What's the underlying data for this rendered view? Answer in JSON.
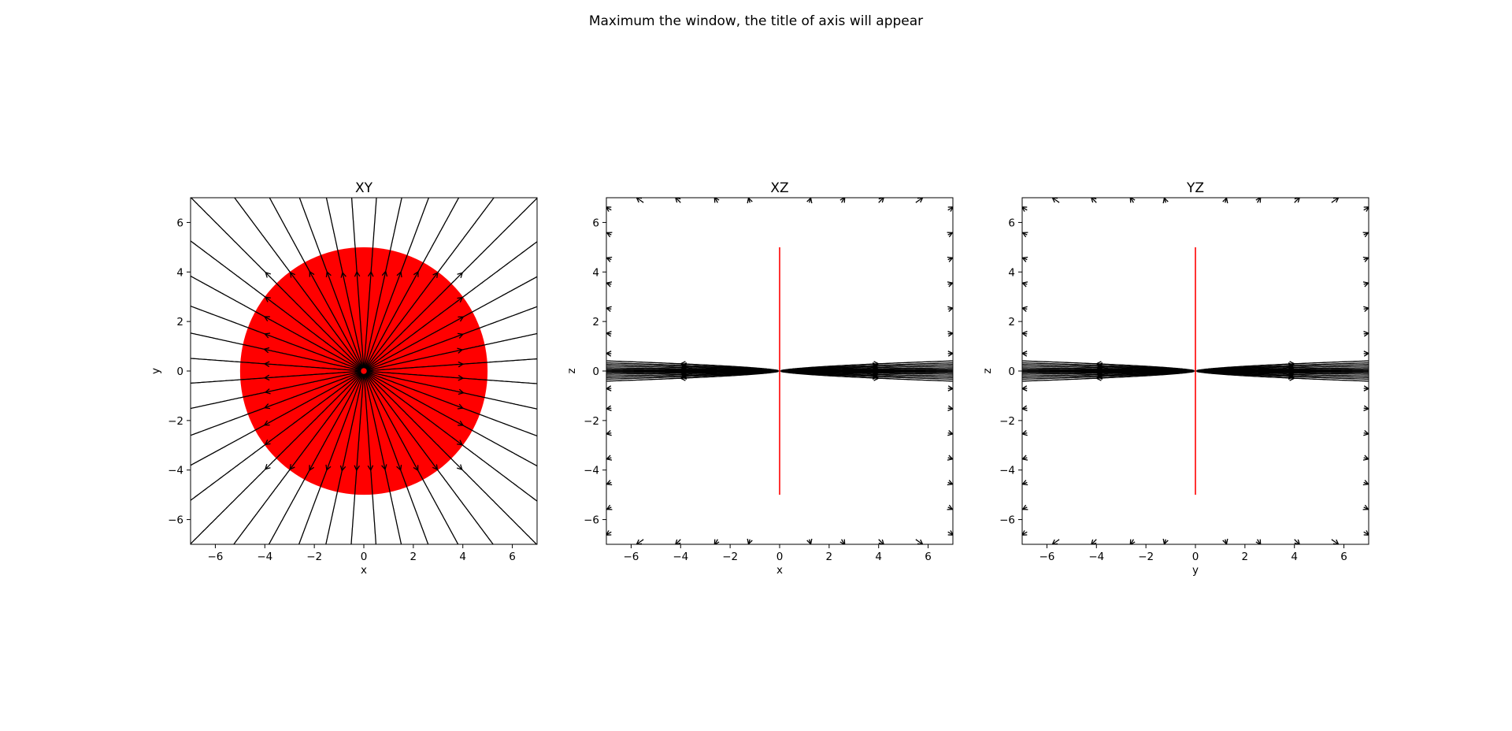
{
  "figure": {
    "suptitle": "Maximum the window, the title of axis will appear"
  },
  "chart_data": [
    {
      "type": "streamplot",
      "title": "XY",
      "xlabel": "x",
      "ylabel": "y",
      "xlim": [
        -7,
        7
      ],
      "ylim": [
        -7,
        7
      ],
      "xticks": [
        -6,
        -4,
        -2,
        0,
        2,
        4,
        6
      ],
      "yticks": [
        -6,
        -4,
        -2,
        0,
        2,
        4,
        6
      ],
      "xtick_labels": [
        "−6",
        "−4",
        "−2",
        "0",
        "2",
        "4",
        "6"
      ],
      "ytick_labels": [
        "−6",
        "−4",
        "−2",
        "0",
        "2",
        "4",
        "6"
      ],
      "field": "radial",
      "line_color": "#000000",
      "grid": false,
      "object": {
        "shape": "circle",
        "center": [
          0,
          0
        ],
        "radius": 5,
        "color": "#ff0000"
      }
    },
    {
      "type": "streamplot",
      "title": "XZ",
      "xlabel": "x",
      "ylabel": "z",
      "xlim": [
        -7,
        7
      ],
      "ylim": [
        -7,
        7
      ],
      "xticks": [
        -6,
        -4,
        -2,
        0,
        2,
        4,
        6
      ],
      "yticks": [
        -6,
        -4,
        -2,
        0,
        2,
        4,
        6
      ],
      "xtick_labels": [
        "−6",
        "−4",
        "−2",
        "0",
        "2",
        "4",
        "6"
      ],
      "ytick_labels": [
        "−6",
        "−4",
        "−2",
        "0",
        "2",
        "4",
        "6"
      ],
      "field": "disk-plane",
      "line_color": "#000000",
      "grid": false,
      "object": {
        "shape": "vertical-line",
        "x": 0,
        "y_range": [
          -5,
          5
        ],
        "color": "#ff0000"
      }
    },
    {
      "type": "streamplot",
      "title": "YZ",
      "xlabel": "y",
      "ylabel": "z",
      "xlim": [
        -7,
        7
      ],
      "ylim": [
        -7,
        7
      ],
      "xticks": [
        -6,
        -4,
        -2,
        0,
        2,
        4,
        6
      ],
      "yticks": [
        -6,
        -4,
        -2,
        0,
        2,
        4,
        6
      ],
      "xtick_labels": [
        "−6",
        "−4",
        "−2",
        "0",
        "2",
        "4",
        "6"
      ],
      "ytick_labels": [
        "−6",
        "−4",
        "−2",
        "0",
        "2",
        "4",
        "6"
      ],
      "field": "disk-plane",
      "line_color": "#000000",
      "grid": false,
      "object": {
        "shape": "vertical-line",
        "x": 0,
        "y_range": [
          -5,
          5
        ],
        "color": "#ff0000"
      }
    }
  ]
}
